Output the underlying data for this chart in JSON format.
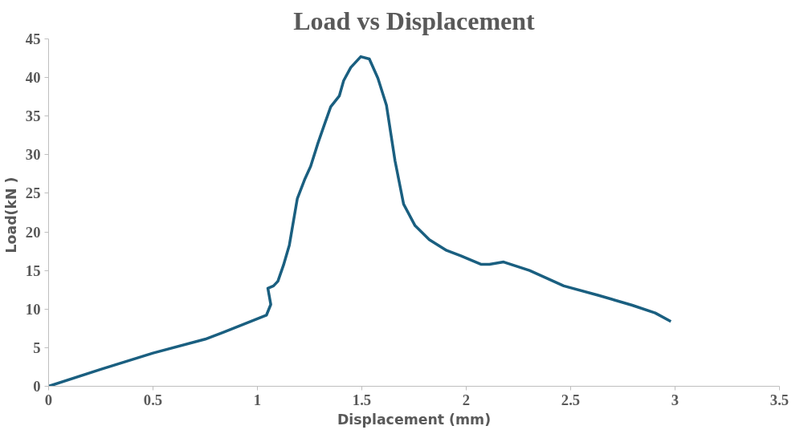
{
  "chart_data": {
    "type": "line",
    "title": "Load vs Displacement",
    "xlabel": "Displacement (mm)",
    "ylabel": "Load(kN  )",
    "xlim": [
      0,
      3.5
    ],
    "xticks": [
      0,
      0.5,
      1,
      1.5,
      2,
      2.5,
      3,
      3.5
    ],
    "ylim": [
      0,
      45
    ],
    "yticks": [
      0,
      5,
      10,
      15,
      20,
      25,
      30,
      35,
      40,
      45
    ],
    "grid": false,
    "marker": "none",
    "line_style": "solid",
    "series": [
      {
        "color": "#1a5f80",
        "x": [
          0,
          0.25,
          0.5,
          0.75,
          0.838,
          1.043,
          1.064,
          1.05,
          1.077,
          1.098,
          1.125,
          1.153,
          1.191,
          1.228,
          1.255,
          1.29,
          1.317,
          1.351,
          1.392,
          1.413,
          1.447,
          1.495,
          1.536,
          1.577,
          1.618,
          1.659,
          1.7,
          1.755,
          1.823,
          1.906,
          1.974,
          2.07,
          2.111,
          2.179,
          2.303,
          2.467,
          2.631,
          2.795,
          2.905,
          2.98
        ],
        "values": [
          0,
          2.2,
          4.3,
          6.1,
          7.0,
          9.2,
          10.6,
          12.7,
          13.0,
          13.6,
          15.7,
          18.3,
          24.3,
          26.9,
          28.5,
          31.5,
          33.6,
          36.2,
          37.6,
          39.6,
          41.3,
          42.7,
          42.4,
          39.9,
          36.4,
          29.2,
          23.6,
          20.8,
          19.0,
          17.6,
          16.9,
          15.8,
          15.8,
          16.1,
          15.0,
          13.0,
          11.8,
          10.5,
          9.5,
          8.4
        ]
      }
    ]
  }
}
